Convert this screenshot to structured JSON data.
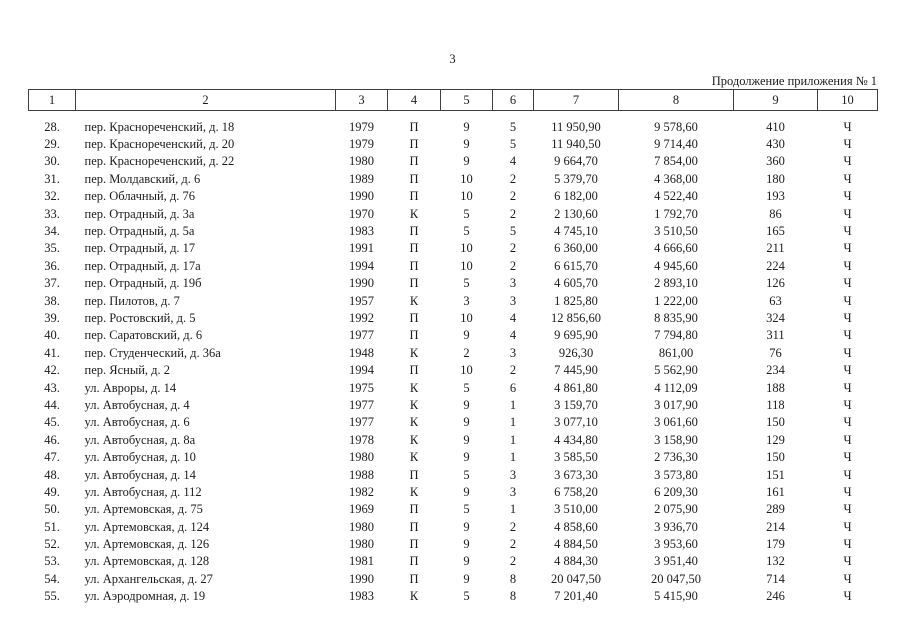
{
  "page": {
    "page_number": "3",
    "continuation_note": "Продолжение приложения № 1"
  },
  "table": {
    "header": [
      "1",
      "2",
      "3",
      "4",
      "5",
      "6",
      "7",
      "8",
      "9",
      "10"
    ],
    "rows": [
      [
        "28.",
        "пер. Краснореченский, д. 18",
        "1979",
        "П",
        "9",
        "5",
        "11 950,90",
        "9 578,60",
        "410",
        "Ч"
      ],
      [
        "29.",
        "пер. Краснореченский, д. 20",
        "1979",
        "П",
        "9",
        "5",
        "11 940,50",
        "9 714,40",
        "430",
        "Ч"
      ],
      [
        "30.",
        "пер. Краснореченский, д. 22",
        "1980",
        "П",
        "9",
        "4",
        "9 664,70",
        "7 854,00",
        "360",
        "Ч"
      ],
      [
        "31.",
        "пер. Молдавский, д. 6",
        "1989",
        "П",
        "10",
        "2",
        "5 379,70",
        "4 368,00",
        "180",
        "Ч"
      ],
      [
        "32.",
        "пер. Облачный, д. 76",
        "1990",
        "П",
        "10",
        "2",
        "6 182,00",
        "4 522,40",
        "193",
        "Ч"
      ],
      [
        "33.",
        "пер. Отрадный, д. 3а",
        "1970",
        "К",
        "5",
        "2",
        "2 130,60",
        "1 792,70",
        "86",
        "Ч"
      ],
      [
        "34.",
        "пер. Отрадный, д. 5а",
        "1983",
        "П",
        "5",
        "5",
        "4 745,10",
        "3 510,50",
        "165",
        "Ч"
      ],
      [
        "35.",
        "пер. Отрадный, д. 17",
        "1991",
        "П",
        "10",
        "2",
        "6 360,00",
        "4 666,60",
        "211",
        "Ч"
      ],
      [
        "36.",
        "пер. Отрадный, д. 17а",
        "1994",
        "П",
        "10",
        "2",
        "6 615,70",
        "4 945,60",
        "224",
        "Ч"
      ],
      [
        "37.",
        "пер. Отрадный, д. 19б",
        "1990",
        "П",
        "5",
        "3",
        "4 605,70",
        "2 893,10",
        "126",
        "Ч"
      ],
      [
        "38.",
        "пер. Пилотов, д. 7",
        "1957",
        "К",
        "3",
        "3",
        "1 825,80",
        "1 222,00",
        "63",
        "Ч"
      ],
      [
        "39.",
        "пер. Ростовский, д. 5",
        "1992",
        "П",
        "10",
        "4",
        "12 856,60",
        "8 835,90",
        "324",
        "Ч"
      ],
      [
        "40.",
        "пер. Саратовский, д. 6",
        "1977",
        "П",
        "9",
        "4",
        "9 695,90",
        "7 794,80",
        "311",
        "Ч"
      ],
      [
        "41.",
        "пер. Студенческий, д. 36а",
        "1948",
        "К",
        "2",
        "3",
        "926,30",
        "861,00",
        "76",
        "Ч"
      ],
      [
        "42.",
        "пер. Ясный, д. 2",
        "1994",
        "П",
        "10",
        "2",
        "7 445,90",
        "5 562,90",
        "234",
        "Ч"
      ],
      [
        "43.",
        "ул. Авроры, д. 14",
        "1975",
        "К",
        "5",
        "6",
        "4 861,80",
        "4 112,09",
        "188",
        "Ч"
      ],
      [
        "44.",
        "ул. Автобусная, д. 4",
        "1977",
        "К",
        "9",
        "1",
        "3 159,70",
        "3 017,90",
        "118",
        "Ч"
      ],
      [
        "45.",
        "ул. Автобусная, д. 6",
        "1977",
        "К",
        "9",
        "1",
        "3 077,10",
        "3 061,60",
        "150",
        "Ч"
      ],
      [
        "46.",
        "ул. Автобусная, д. 8а",
        "1978",
        "К",
        "9",
        "1",
        "4 434,80",
        "3 158,90",
        "129",
        "Ч"
      ],
      [
        "47.",
        "ул. Автобусная, д. 10",
        "1980",
        "К",
        "9",
        "1",
        "3 585,50",
        "2 736,30",
        "150",
        "Ч"
      ],
      [
        "48.",
        "ул. Автобусная, д. 14",
        "1988",
        "П",
        "5",
        "3",
        "3 673,30",
        "3 573,80",
        "151",
        "Ч"
      ],
      [
        "49.",
        "ул. Автобусная, д. 112",
        "1982",
        "К",
        "9",
        "3",
        "6 758,20",
        "6 209,30",
        "161",
        "Ч"
      ],
      [
        "50.",
        "ул. Артемовская, д. 75",
        "1969",
        "П",
        "5",
        "1",
        "3 510,00",
        "2 075,90",
        "289",
        "Ч"
      ],
      [
        "51.",
        "ул. Артемовская, д. 124",
        "1980",
        "П",
        "9",
        "2",
        "4 858,60",
        "3 936,70",
        "214",
        "Ч"
      ],
      [
        "52.",
        "ул. Артемовская, д. 126",
        "1980",
        "П",
        "9",
        "2",
        "4 884,50",
        "3 953,60",
        "179",
        "Ч"
      ],
      [
        "53.",
        "ул. Артемовская, д. 128",
        "1981",
        "П",
        "9",
        "2",
        "4 884,30",
        "3 951,40",
        "132",
        "Ч"
      ],
      [
        "54.",
        "ул. Архангельская, д. 27",
        "1990",
        "П",
        "9",
        "8",
        "20 047,50",
        "20 047,50",
        "714",
        "Ч"
      ],
      [
        "55.",
        "ул. Аэродромная, д. 19",
        "1983",
        "К",
        "5",
        "8",
        "7 201,40",
        "5 415,90",
        "246",
        "Ч"
      ]
    ]
  }
}
